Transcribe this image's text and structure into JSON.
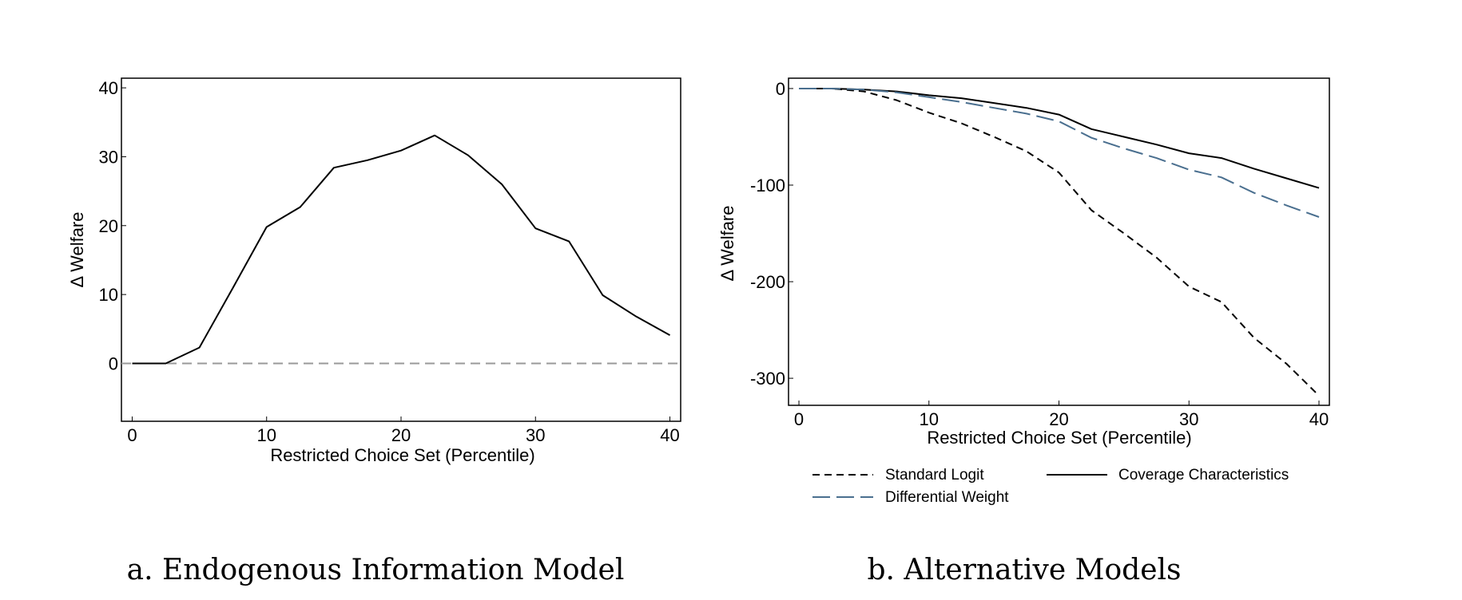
{
  "chart_data": [
    {
      "type": "line",
      "caption": "a.  Endogenous Information Model",
      "xlabel": "Restricted Choice Set (Percentile)",
      "ylabel": "Δ Welfare",
      "xlim": [
        -0.8,
        40.8
      ],
      "ylim": [
        -8.4,
        41.4
      ],
      "xticks": [
        "0",
        "10",
        "20",
        "30",
        "40"
      ],
      "yticks": [
        "0",
        "10",
        "20",
        "30",
        "40"
      ],
      "xtick_values": [
        0,
        10,
        20,
        30,
        40
      ],
      "ytick_values": [
        0,
        10,
        20,
        30,
        40
      ],
      "grid": false,
      "reference_line": {
        "y": 0,
        "style": "dashed",
        "color": "#999999"
      },
      "x": [
        0,
        2.5,
        5,
        7.5,
        10,
        12.5,
        15,
        17.5,
        20,
        22.5,
        25,
        27.5,
        30,
        32.5,
        35,
        37.5,
        40
      ],
      "series": [
        {
          "name": "Endogenous Information",
          "color": "#000000",
          "dash": "solid",
          "values": [
            0,
            0,
            2.3,
            11,
            19.8,
            22.7,
            28.4,
            29.5,
            30.9,
            33.1,
            30.2,
            26.0,
            19.6,
            17.7,
            9.9,
            6.8,
            4.1
          ]
        }
      ]
    },
    {
      "type": "line",
      "caption": "b.  Alternative Models",
      "xlabel": "Restricted Choice Set (Percentile)",
      "ylabel": "Δ Welfare",
      "xlim": [
        -0.8,
        40.8
      ],
      "ylim": [
        -328,
        10.7
      ],
      "xticks": [
        "0",
        "10",
        "20",
        "30",
        "40"
      ],
      "yticks": [
        "0",
        "-100",
        "-200",
        "-300"
      ],
      "xtick_values": [
        0,
        10,
        20,
        30,
        40
      ],
      "ytick_values": [
        0,
        -100,
        -200,
        -300
      ],
      "grid": false,
      "legend_position": "bottom",
      "x": [
        0,
        2.5,
        5,
        7.5,
        10,
        12.5,
        15,
        17.5,
        20,
        22.5,
        25,
        27.5,
        30,
        32.5,
        35,
        37.5,
        40
      ],
      "series": [
        {
          "name": "Standard Logit",
          "color": "#000000",
          "dash": "short",
          "values": [
            0,
            0,
            -3,
            -12,
            -25,
            -36,
            -50,
            -65,
            -87,
            -126,
            -150,
            -175,
            -205,
            -221,
            -258,
            -285,
            -318
          ]
        },
        {
          "name": "Coverage Characteristics",
          "color": "#000000",
          "dash": "solid",
          "values": [
            0,
            0,
            -1,
            -3,
            -7,
            -10,
            -15,
            -20,
            -27,
            -42,
            -50,
            -58,
            -67,
            -72,
            -83,
            -93,
            -103
          ]
        },
        {
          "name": "Differential Weight",
          "color": "#4a6f8f",
          "dash": "long",
          "values": [
            0,
            0,
            -1,
            -4,
            -9,
            -14,
            -20,
            -26,
            -34,
            -51,
            -62,
            -72,
            -84,
            -92,
            -108,
            -121,
            -133
          ]
        }
      ]
    }
  ]
}
